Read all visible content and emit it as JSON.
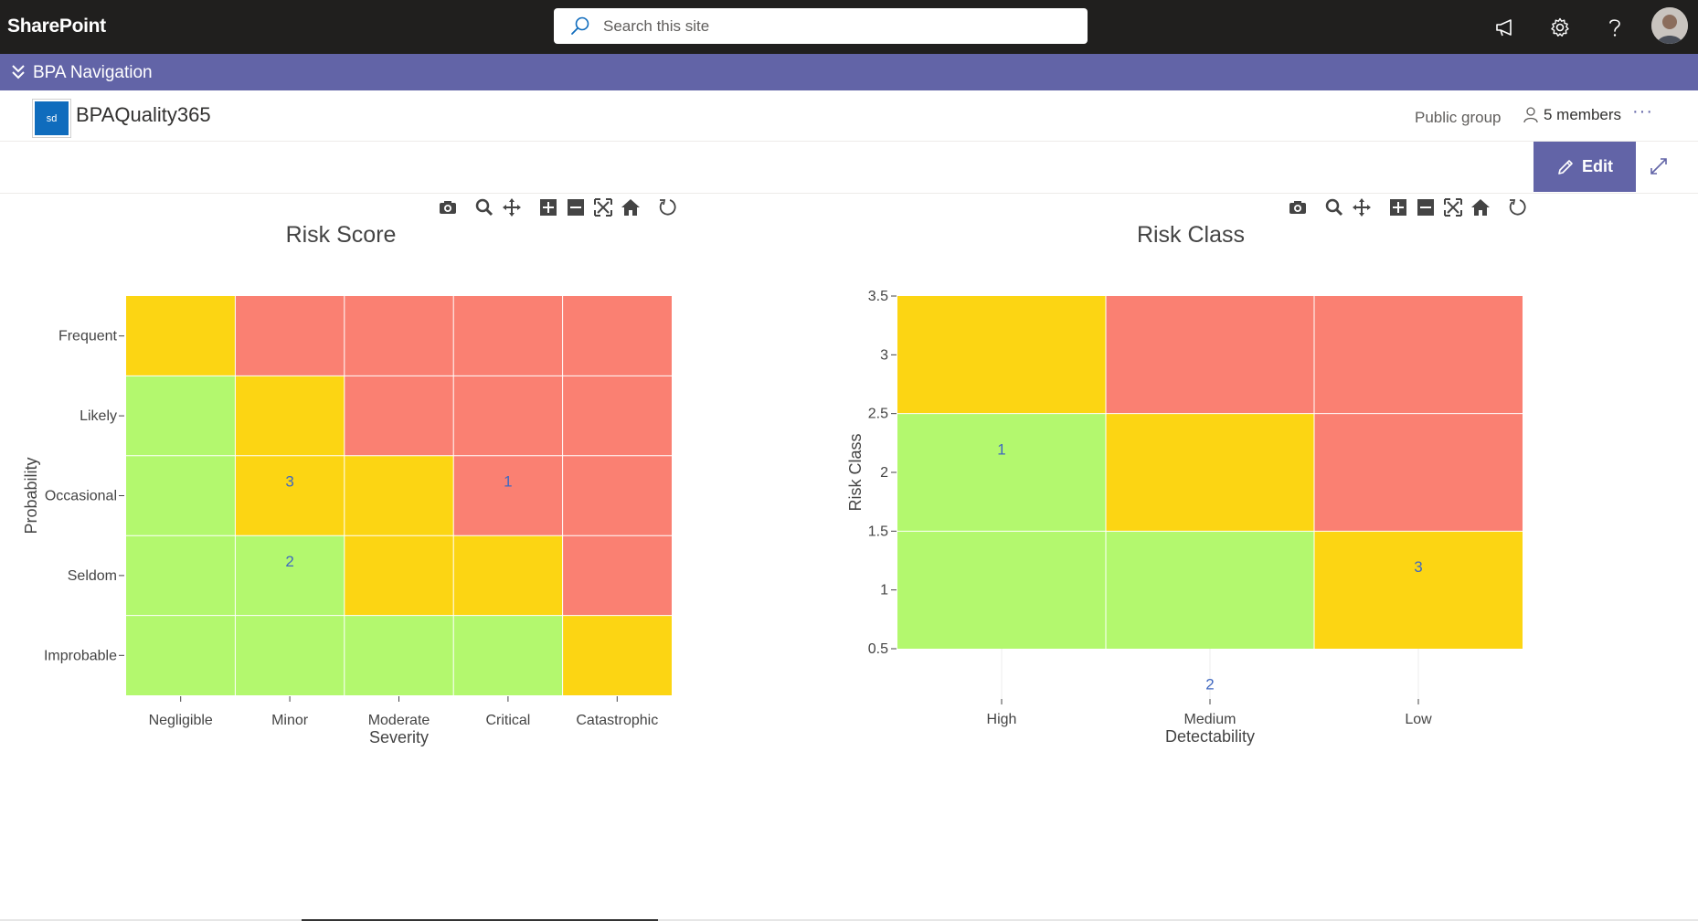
{
  "suite": {
    "brand": "SharePoint",
    "search_placeholder": "Search this site",
    "icons": [
      "megaphone-icon",
      "gear-icon",
      "help-icon",
      "avatar"
    ]
  },
  "hub_nav": {
    "label": "BPA Navigation"
  },
  "site": {
    "logo_text": "sd",
    "title": "BPAQuality365",
    "privacy": "Public group",
    "members": "5 members",
    "more": "···"
  },
  "command_bar": {
    "edit_label": "Edit"
  },
  "colors": {
    "green": "#b3f86e",
    "yellow": "#fcd513",
    "red": "#fa8072",
    "suitebar": "#201f1e",
    "hub": "#6264a7"
  },
  "chart_data": [
    {
      "type": "heatmap",
      "title": "Risk Score",
      "xlabel": "Severity",
      "ylabel": "Probability",
      "x": [
        "Negligible",
        "Minor",
        "Moderate",
        "Critical",
        "Catastrophic"
      ],
      "y": [
        "Improbable",
        "Seldom",
        "Occasional",
        "Likely",
        "Frequent"
      ],
      "cells": [
        [
          "green",
          "green",
          "green",
          "green",
          "yellow"
        ],
        [
          "green",
          "green",
          "yellow",
          "yellow",
          "red"
        ],
        [
          "green",
          "yellow",
          "yellow",
          "red",
          "red"
        ],
        [
          "green",
          "yellow",
          "red",
          "red",
          "red"
        ],
        [
          "yellow",
          "red",
          "red",
          "red",
          "red"
        ]
      ],
      "annotations": [
        {
          "x": "Minor",
          "y": "Occasional",
          "text": "3"
        },
        {
          "x": "Critical",
          "y": "Occasional",
          "text": "1"
        },
        {
          "x": "Minor",
          "y": "Seldom",
          "text": "2"
        }
      ]
    },
    {
      "type": "heatmap",
      "title": "Risk Class",
      "xlabel": "Detectability",
      "ylabel": "Risk Class",
      "x": [
        "High",
        "Medium",
        "Low"
      ],
      "y": [
        1,
        2,
        3
      ],
      "ytick_labels": [
        "0.5",
        "1",
        "1.5",
        "2",
        "2.5",
        "3",
        "3.5"
      ],
      "ylim": [
        0.5,
        3.5
      ],
      "cells": [
        [
          "green",
          "green",
          "yellow"
        ],
        [
          "green",
          "yellow",
          "red"
        ],
        [
          "yellow",
          "red",
          "red"
        ]
      ],
      "annotations": [
        {
          "x": "High",
          "y": 2.2,
          "text": "1"
        },
        {
          "x": "Low",
          "y": 1.2,
          "text": "3"
        },
        {
          "x": "Medium",
          "y": 0.2,
          "text": "2"
        }
      ]
    }
  ]
}
